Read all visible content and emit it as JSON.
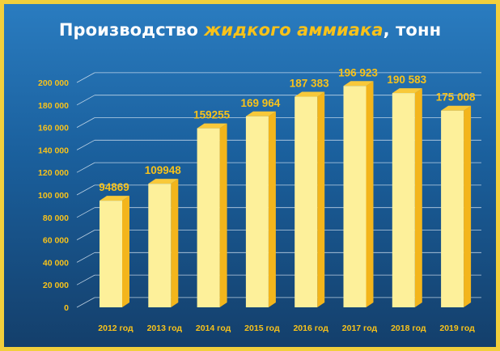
{
  "chart_data": {
    "type": "bar",
    "title_parts": {
      "pre": "Производство ",
      "highlight": "жидкого аммиака",
      "post": ", тонн"
    },
    "categories": [
      "2012 год",
      "2013 год",
      "2014 год",
      "2015 год",
      "2016 год",
      "2017 год",
      "2018 год",
      "2019 год"
    ],
    "values": [
      94869,
      109948,
      159255,
      169964,
      187383,
      196923,
      190583,
      175008
    ],
    "value_labels": [
      "94869",
      "109948",
      "159255",
      "169 964",
      "187 383",
      "196 923",
      "190 583",
      "175 008"
    ],
    "ylim": [
      0,
      200000
    ],
    "yticks": [
      0,
      20000,
      40000,
      60000,
      80000,
      100000,
      120000,
      140000,
      160000,
      180000,
      200000
    ],
    "ytick_labels": [
      "0",
      "20 000",
      "40 000",
      "60 000",
      "80 000",
      "100 000",
      "120 000",
      "140 000",
      "160 000",
      "180 000",
      "200 000"
    ],
    "grid": true,
    "bars_3d": true
  },
  "colors": {
    "bar_front": "#fdf09a",
    "bar_side": "#f3b51c",
    "bar_top": "#f8c93a",
    "label": "#f8c21a",
    "grid": "#d9e6f2",
    "title_highlight": "#f8c21a"
  }
}
